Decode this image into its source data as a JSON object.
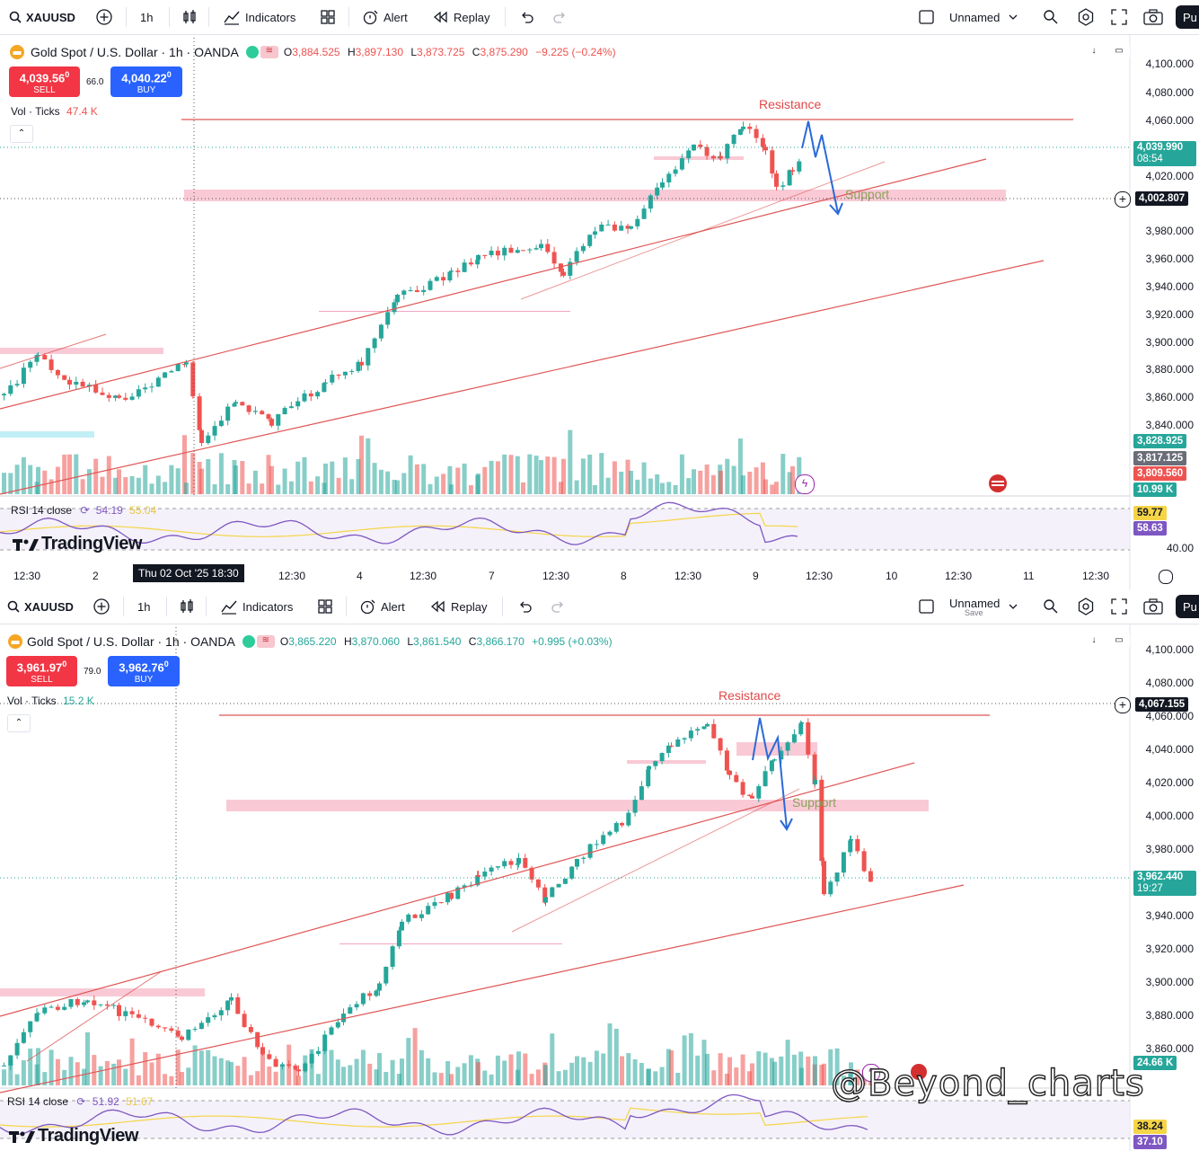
{
  "colors": {
    "up": "#26a69a",
    "down": "#ef5350",
    "sell": "#f23645",
    "buy": "#2962ff",
    "line": "#e05555",
    "zone": "#f7b7c8",
    "arrow": "#2b6ad8",
    "support_text": "#8aa35a",
    "resistance_text": "#e04848",
    "rsi_line": "#7e57c2",
    "rsi_ma": "#f5d547"
  },
  "panels": [
    {
      "toolbar": {
        "symbol": "XAUUSD",
        "interval": "1h",
        "indicators": "Indicators",
        "alert": "Alert",
        "replay": "Replay",
        "layout_name": "Unnamed",
        "layout_sub": "",
        "publish": "Pu"
      },
      "legend": {
        "title": "Gold Spot / U.S. Dollar · 1h · OANDA",
        "o": "3,884.525",
        "h": "3,897.130",
        "l": "3,873.725",
        "c": "3,875.290",
        "chg": "−9.225 (−0.24%)"
      },
      "sell": {
        "price": "4,039.56",
        "sup": "0",
        "label": "SELL"
      },
      "buy": {
        "price": "4,040.22",
        "sup": "0",
        "label": "BUY"
      },
      "spread": "66.0",
      "volume": {
        "label": "Vol · Ticks",
        "value": "47.4 K"
      },
      "rsi": {
        "label": "RSI 14 close",
        "value": "54.19",
        "ma": "55.04"
      },
      "price_axis": [
        "4,100.000",
        "4,080.000",
        "4,060.000",
        "4,020.000",
        "3,980.000",
        "3,960.000",
        "3,940.000",
        "3,920.000",
        "3,900.000",
        "3,880.000",
        "3,860.000",
        "3,840.000"
      ],
      "tags": {
        "current": "4,039.990",
        "countdown": "08:54",
        "crosshair": "4,002.807",
        "v1": "3,828.925",
        "v2": "3,817.125",
        "v3": "3,809.560",
        "vol": "10.99 K",
        "rsi1": "59.77",
        "rsi2": "58.63",
        "rsi_level": "40.00"
      },
      "time_axis": [
        "12:30",
        "2",
        "12:30",
        "4",
        "12:30",
        "7",
        "12:30",
        "8",
        "12:30",
        "9",
        "12:30",
        "10",
        "12:30",
        "11",
        "12:30"
      ],
      "time_flag": "Thu 02 Oct '25   18:30",
      "annotations": {
        "resistance": "Resistance",
        "support": "Support"
      },
      "logo": "TradingView"
    },
    {
      "toolbar": {
        "symbol": "XAUUSD",
        "interval": "1h",
        "indicators": "Indicators",
        "alert": "Alert",
        "replay": "Replay",
        "layout_name": "Unnamed",
        "layout_sub": "Save",
        "publish": "Pu"
      },
      "legend": {
        "title": "Gold Spot / U.S. Dollar · 1h · OANDA",
        "o": "3,865.220",
        "h": "3,870.060",
        "l": "3,861.540",
        "c": "3,866.170",
        "chg": "+0.995 (+0.03%)"
      },
      "sell": {
        "price": "3,961.97",
        "sup": "0",
        "label": "SELL"
      },
      "buy": {
        "price": "3,962.76",
        "sup": "0",
        "label": "BUY"
      },
      "spread": "79.0",
      "volume": {
        "label": "Vol · Ticks",
        "value": "15.2 K"
      },
      "rsi": {
        "label": "RSI 14 close",
        "value": "51.92",
        "ma": "51.67"
      },
      "price_axis": [
        "4,100.000",
        "4,080.000",
        "4,060.000",
        "4,040.000",
        "4,020.000",
        "4,000.000",
        "3,980.000",
        "3,940.000",
        "3,920.000",
        "3,900.000",
        "3,880.000",
        "3,860.000"
      ],
      "tags": {
        "current": "3,962.440",
        "countdown": "19:27",
        "crosshair": "4,067.155",
        "vol": "24.66 K",
        "rsi1": "38.24",
        "rsi2": "37.10"
      },
      "annotations": {
        "resistance": "Resistance",
        "support": "Support"
      },
      "logo": "TradingView",
      "watermark": "@Beyond_charts"
    }
  ]
}
